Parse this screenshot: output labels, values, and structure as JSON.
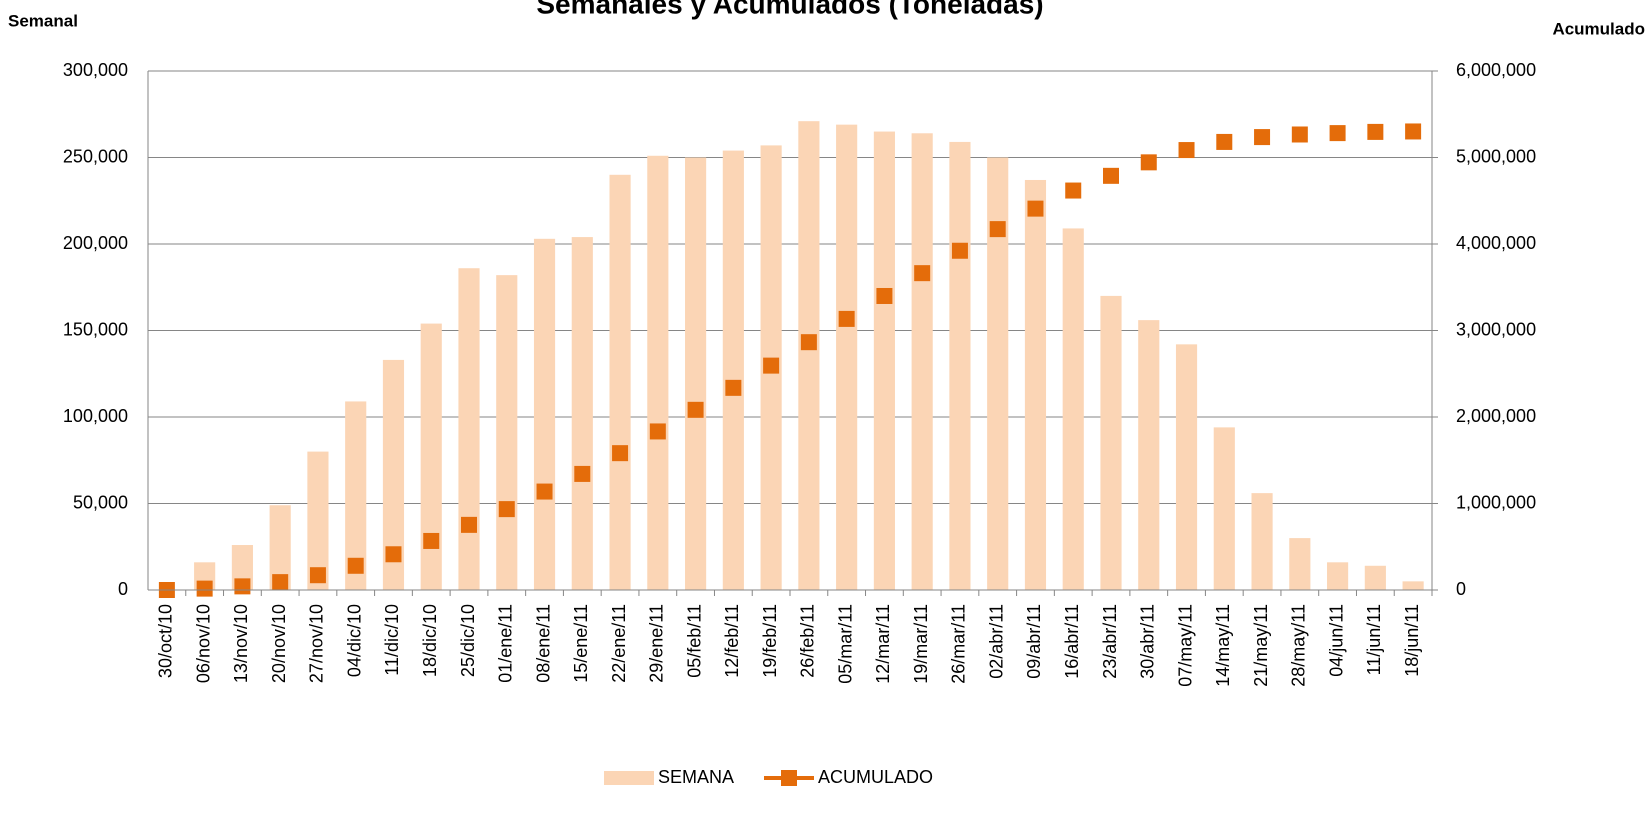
{
  "chart_data": {
    "type": "bar-line",
    "title": "Semanales y Acumulados (Toneladas)",
    "y_label": "Semanal",
    "y2_label": "Acumulado",
    "categories": [
      "30/oct/10",
      "06/nov/10",
      "13/nov/10",
      "20/nov/10",
      "27/nov/10",
      "04/dic/10",
      "11/dic/10",
      "18/dic/10",
      "25/dic/10",
      "01/ene/11",
      "08/ene/11",
      "15/ene/11",
      "22/ene/11",
      "29/ene/11",
      "05/feb/11",
      "12/feb/11",
      "19/feb/11",
      "26/feb/11",
      "05/mar/11",
      "12/mar/11",
      "19/mar/11",
      "26/mar/11",
      "02/abr/11",
      "09/abr/11",
      "16/abr/11",
      "23/abr/11",
      "30/abr/11",
      "07/may/11",
      "14/may/11",
      "21/may/11",
      "28/may/11",
      "04/jun/11",
      "11/jun/11",
      "18/jun/11"
    ],
    "series": [
      {
        "name": "SEMANA",
        "type": "bar",
        "color": "#fbd5b5",
        "values": [
          0,
          16000,
          26000,
          49000,
          80000,
          109000,
          133000,
          154000,
          186000,
          182000,
          203000,
          204000,
          240000,
          251000,
          250000,
          254000,
          257000,
          271000,
          269000,
          265000,
          264000,
          259000,
          250000,
          237000,
          209000,
          170000,
          156000,
          142000,
          94000,
          56000,
          30000,
          16000,
          14000,
          5000
        ]
      },
      {
        "name": "ACUMULADO",
        "type": "line",
        "axis": "y2",
        "color": "#e46c0a",
        "values": [
          0,
          16000,
          42000,
          91000,
          171000,
          280000,
          413000,
          567000,
          753000,
          935000,
          1138000,
          1342000,
          1582000,
          1833000,
          2083000,
          2337000,
          2594000,
          2865000,
          3134000,
          3399000,
          3663000,
          3922000,
          4172000,
          4409000,
          4618000,
          4788000,
          4944000,
          5086000,
          5180000,
          5236000,
          5266000,
          5282000,
          5296000,
          5301000
        ]
      }
    ],
    "ylim": [
      0,
      300000
    ],
    "yticks": [
      0,
      {
        "value": 50000,
        "label": "50,000"
      },
      {
        "value": 100000,
        "label": "100,000"
      },
      {
        "value": 150000,
        "label": "150,000"
      },
      {
        "value": 200000,
        "label": "200,000"
      },
      {
        "value": 250000,
        "label": "250,000"
      },
      {
        "value": 300000,
        "label": "300,000"
      }
    ],
    "y2lim": [
      0,
      6000000
    ],
    "y2ticks": [
      0,
      {
        "value": 1000000,
        "label": "1,000,000"
      },
      {
        "value": 2000000,
        "label": "2,000,000"
      },
      {
        "value": 3000000,
        "label": "3,000,000"
      },
      {
        "value": 4000000,
        "label": "4,000,000"
      },
      {
        "value": 5000000,
        "label": "5,000,000"
      },
      {
        "value": 6000000,
        "label": "6,000,000"
      }
    ],
    "grid": true,
    "legend": "bottom"
  }
}
